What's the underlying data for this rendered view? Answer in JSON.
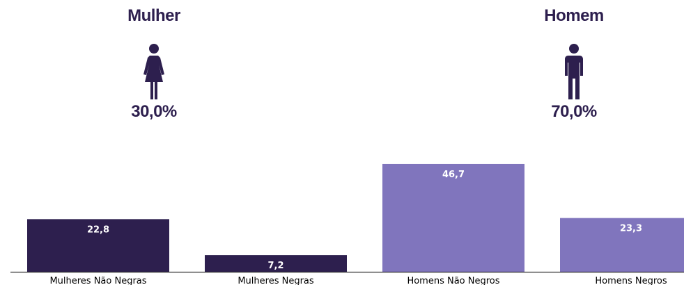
{
  "genders": [
    {
      "id": "female",
      "title": "Mulher",
      "percent": "30,0%",
      "icon": "woman-icon",
      "color": "#2d1f4e"
    },
    {
      "id": "male",
      "title": "Homem",
      "percent": "70,0%",
      "icon": "man-icon",
      "color": "#2d1f4e"
    }
  ],
  "chart_data": {
    "type": "bar",
    "categories": [
      "Mulheres Não Negras",
      "Mulheres Negras",
      "Homens Não Negros",
      "Homens Negros"
    ],
    "values": [
      22.8,
      7.2,
      46.7,
      23.3
    ],
    "value_labels": [
      "22,8",
      "7,2",
      "46,7",
      "23,3"
    ],
    "colors": [
      "#2d1f4e",
      "#2d1f4e",
      "#8075bd",
      "#8075bd"
    ],
    "title": "",
    "xlabel": "",
    "ylabel": "",
    "ylim": [
      0,
      50
    ],
    "grid": false,
    "label_color": "#ffffff"
  }
}
